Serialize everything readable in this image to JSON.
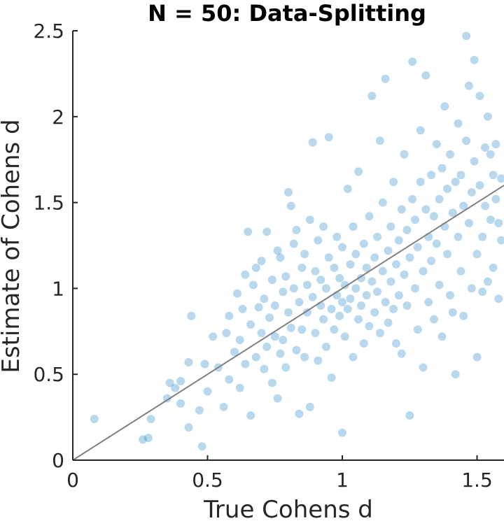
{
  "chart_data": {
    "type": "scatter",
    "title": "N = 50: Data-Splitting",
    "xlabel": "True Cohens d",
    "ylabel": "Estimate of Cohens d",
    "xlim": [
      0,
      1.6
    ],
    "ylim": [
      0,
      2.5
    ],
    "xticks": [
      "0",
      "0.5",
      "1",
      "1.5"
    ],
    "xtick_values": [
      0,
      0.5,
      1,
      1.5
    ],
    "yticks": [
      "0",
      "0.5",
      "1",
      "1.5",
      "2",
      "2.5"
    ],
    "ytick_values": [
      0,
      0.5,
      1,
      1.5,
      2,
      2.5
    ],
    "grid": false,
    "legend": "none",
    "reference_line": {
      "from": [
        0,
        0
      ],
      "to": [
        1.6,
        1.6
      ],
      "color": "#808080"
    },
    "marker_color": "#0072BD",
    "marker_alpha": 0.28,
    "points_note": "approx. 1000 simulated points",
    "series": [
      {
        "points": [
          [
            0.08,
            0.24
          ],
          [
            0.26,
            0.12
          ],
          [
            0.28,
            0.13
          ],
          [
            0.29,
            0.24
          ],
          [
            0.35,
            0.36
          ],
          [
            0.36,
            0.45
          ],
          [
            0.38,
            0.42
          ],
          [
            0.4,
            0.46
          ],
          [
            0.4,
            0.33
          ],
          [
            0.43,
            0.19
          ],
          [
            0.43,
            0.57
          ],
          [
            0.44,
            0.84
          ],
          [
            0.47,
            0.29
          ],
          [
            0.48,
            0.08
          ],
          [
            0.49,
            0.56
          ],
          [
            0.5,
            0.4
          ],
          [
            0.52,
            0.72
          ],
          [
            0.54,
            0.54
          ],
          [
            0.56,
            0.31
          ],
          [
            0.57,
            0.74
          ],
          [
            0.58,
            0.84
          ],
          [
            0.58,
            0.47
          ],
          [
            0.6,
            0.63
          ],
          [
            0.61,
            0.97
          ],
          [
            0.62,
            0.7
          ],
          [
            0.62,
            0.42
          ],
          [
            0.63,
            0.88
          ],
          [
            0.64,
            1.08
          ],
          [
            0.64,
            0.56
          ],
          [
            0.65,
            1.33
          ],
          [
            0.66,
            0.79
          ],
          [
            0.66,
            0.26
          ],
          [
            0.67,
            1.02
          ],
          [
            0.68,
            0.6
          ],
          [
            0.68,
            1.12
          ],
          [
            0.69,
            0.89
          ],
          [
            0.7,
            0.74
          ],
          [
            0.7,
            1.16
          ],
          [
            0.71,
            0.53
          ],
          [
            0.71,
            0.94
          ],
          [
            0.72,
            1.33
          ],
          [
            0.72,
            0.66
          ],
          [
            0.73,
            0.83
          ],
          [
            0.74,
            0.45
          ],
          [
            0.74,
            1.05
          ],
          [
            0.75,
            0.9
          ],
          [
            0.75,
            0.72
          ],
          [
            0.76,
            1.22
          ],
          [
            0.76,
            0.36
          ],
          [
            0.77,
            0.62
          ],
          [
            0.77,
            1.18
          ],
          [
            0.78,
            0.98
          ],
          [
            0.78,
            0.7
          ],
          [
            0.79,
            1.07
          ],
          [
            0.79,
            0.54
          ],
          [
            0.8,
            1.56
          ],
          [
            0.8,
            0.86
          ],
          [
            0.81,
            1.48
          ],
          [
            0.81,
            0.77
          ],
          [
            0.82,
            1.26
          ],
          [
            0.82,
            1.0
          ],
          [
            0.83,
            0.64
          ],
          [
            0.83,
            1.34
          ],
          [
            0.84,
            0.92
          ],
          [
            0.84,
            0.27
          ],
          [
            0.85,
            1.12
          ],
          [
            0.85,
            0.76
          ],
          [
            0.86,
            0.6
          ],
          [
            0.86,
            1.2
          ],
          [
            0.87,
            1.02
          ],
          [
            0.87,
            0.86
          ],
          [
            0.88,
            1.4
          ],
          [
            0.88,
            0.31
          ],
          [
            0.89,
            0.95
          ],
          [
            0.89,
            1.85
          ],
          [
            0.9,
            0.74
          ],
          [
            0.9,
            1.1
          ],
          [
            0.91,
            1.28
          ],
          [
            0.91,
            0.58
          ],
          [
            0.92,
            0.9
          ],
          [
            0.92,
            1.05
          ],
          [
            0.93,
            0.82
          ],
          [
            0.93,
            1.36
          ],
          [
            0.94,
            1.0
          ],
          [
            0.94,
            0.66
          ],
          [
            0.95,
            1.18
          ],
          [
            0.95,
            1.88
          ],
          [
            0.96,
            0.88
          ],
          [
            0.96,
            0.48
          ],
          [
            0.97,
            1.12
          ],
          [
            0.97,
            0.76
          ],
          [
            0.98,
            0.96
          ],
          [
            0.98,
            1.3
          ],
          [
            0.99,
            0.84
          ],
          [
            0.99,
            1.06
          ],
          [
            1.0,
            0.92
          ],
          [
            1.0,
            1.24
          ],
          [
            1.0,
            0.16
          ],
          [
            1.01,
            1.02
          ],
          [
            1.01,
            0.72
          ],
          [
            1.02,
            1.58
          ],
          [
            1.02,
            0.88
          ],
          [
            1.03,
            1.14
          ],
          [
            1.03,
            0.94
          ],
          [
            1.04,
            1.36
          ],
          [
            1.04,
            0.6
          ],
          [
            1.05,
            1.0
          ],
          [
            1.05,
            1.2
          ],
          [
            1.06,
            0.82
          ],
          [
            1.06,
            1.68
          ],
          [
            1.07,
            1.06
          ],
          [
            1.07,
            0.9
          ],
          [
            1.08,
            1.26
          ],
          [
            1.08,
            0.68
          ],
          [
            1.09,
            1.12
          ],
          [
            1.09,
            0.96
          ],
          [
            1.1,
            1.42
          ],
          [
            1.1,
            0.78
          ],
          [
            1.11,
            1.04
          ],
          [
            1.11,
            2.12
          ],
          [
            1.12,
            1.18
          ],
          [
            1.12,
            0.86
          ],
          [
            1.13,
            1.3
          ],
          [
            1.13,
            0.98
          ],
          [
            1.14,
            1.86
          ],
          [
            1.14,
            0.74
          ],
          [
            1.15,
            1.1
          ],
          [
            1.15,
            1.5
          ],
          [
            1.16,
            0.92
          ],
          [
            1.16,
            2.22
          ],
          [
            1.17,
            1.22
          ],
          [
            1.17,
            0.8
          ],
          [
            1.18,
            1.04
          ],
          [
            1.18,
            1.36
          ],
          [
            1.19,
            0.88
          ],
          [
            1.19,
            1.62
          ],
          [
            1.2,
            1.14
          ],
          [
            1.2,
            0.68
          ],
          [
            1.21,
            1.28
          ],
          [
            1.21,
            0.96
          ],
          [
            1.22,
            1.46
          ],
          [
            1.22,
            0.62
          ],
          [
            1.23,
            1.08
          ],
          [
            1.23,
            1.78
          ],
          [
            1.24,
            0.9
          ],
          [
            1.24,
            1.34
          ],
          [
            1.25,
            1.18
          ],
          [
            1.25,
            0.26
          ],
          [
            1.26,
            1.52
          ],
          [
            1.26,
            2.32
          ],
          [
            1.27,
            1.0
          ],
          [
            1.27,
            1.4
          ],
          [
            1.28,
            1.24
          ],
          [
            1.28,
            0.76
          ],
          [
            1.29,
            1.62
          ],
          [
            1.29,
            1.92
          ],
          [
            1.3,
            1.1
          ],
          [
            1.3,
            0.54
          ],
          [
            1.31,
            1.46
          ],
          [
            1.31,
            2.24
          ],
          [
            1.32,
            1.3
          ],
          [
            1.32,
            0.92
          ],
          [
            1.33,
            1.66
          ],
          [
            1.33,
            1.16
          ],
          [
            1.34,
            1.42
          ],
          [
            1.34,
            0.82
          ],
          [
            1.35,
            1.84
          ],
          [
            1.35,
            1.26
          ],
          [
            1.36,
            1.52
          ],
          [
            1.36,
            1.02
          ],
          [
            1.37,
            1.7
          ],
          [
            1.37,
            0.72
          ],
          [
            1.38,
            1.36
          ],
          [
            1.38,
            2.06
          ],
          [
            1.39,
            1.2
          ],
          [
            1.39,
            1.58
          ],
          [
            1.4,
            0.96
          ],
          [
            1.4,
            1.78
          ],
          [
            1.41,
            1.44
          ],
          [
            1.41,
            0.86
          ],
          [
            1.42,
            1.62
          ],
          [
            1.42,
            0.5
          ],
          [
            1.43,
            1.3
          ],
          [
            1.43,
            1.96
          ],
          [
            1.44,
            1.1
          ],
          [
            1.44,
            1.66
          ],
          [
            1.45,
            1.48
          ],
          [
            1.45,
            0.84
          ],
          [
            1.46,
            2.47
          ],
          [
            1.46,
            1.86
          ],
          [
            1.47,
            1.38
          ],
          [
            1.47,
            2.18
          ],
          [
            1.48,
            1.56
          ],
          [
            1.48,
            1.0
          ],
          [
            1.49,
            2.33
          ],
          [
            1.49,
            1.74
          ],
          [
            1.5,
            1.2
          ],
          [
            1.5,
            0.6
          ],
          [
            1.51,
            1.6
          ],
          [
            1.51,
            2.12
          ],
          [
            1.52,
            1.3
          ],
          [
            1.52,
            0.98
          ],
          [
            1.53,
            1.82
          ],
          [
            1.53,
            1.48
          ],
          [
            1.54,
            1.04
          ],
          [
            1.54,
            2.0
          ],
          [
            1.55,
            1.4
          ],
          [
            1.55,
            1.78
          ],
          [
            1.56,
            1.66
          ],
          [
            1.56,
            1.12
          ],
          [
            1.57,
            1.52
          ],
          [
            1.57,
            1.84
          ],
          [
            1.58,
            1.38
          ],
          [
            1.58,
            0.94
          ],
          [
            1.59,
            1.28
          ],
          [
            1.59,
            1.64
          ]
        ]
      }
    ]
  }
}
